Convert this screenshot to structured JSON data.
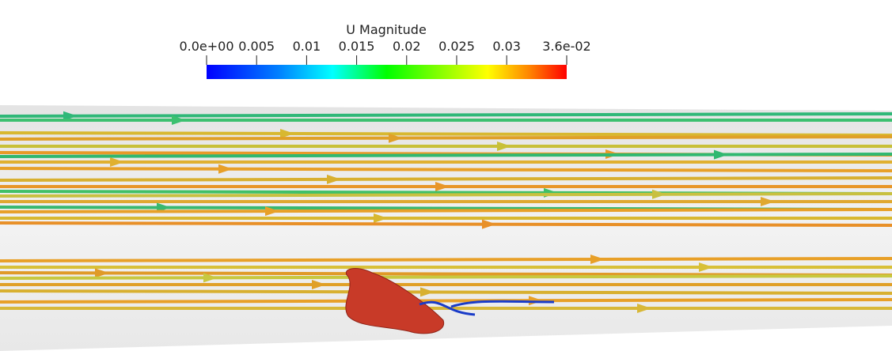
{
  "colorbar": {
    "title": "U Magnitude",
    "range": [
      {
        "value": 0,
        "label": "0.0e+00"
      },
      {
        "value": 0.036,
        "label": "3.6e-02"
      }
    ],
    "ticks": [
      {
        "value": 0,
        "label": "0.0e+00"
      },
      0.005,
      0.01,
      0.015,
      0.02,
      0.025,
      0.03,
      {
        "value": 0.036,
        "label": "3.6e-02"
      }
    ]
  }
}
